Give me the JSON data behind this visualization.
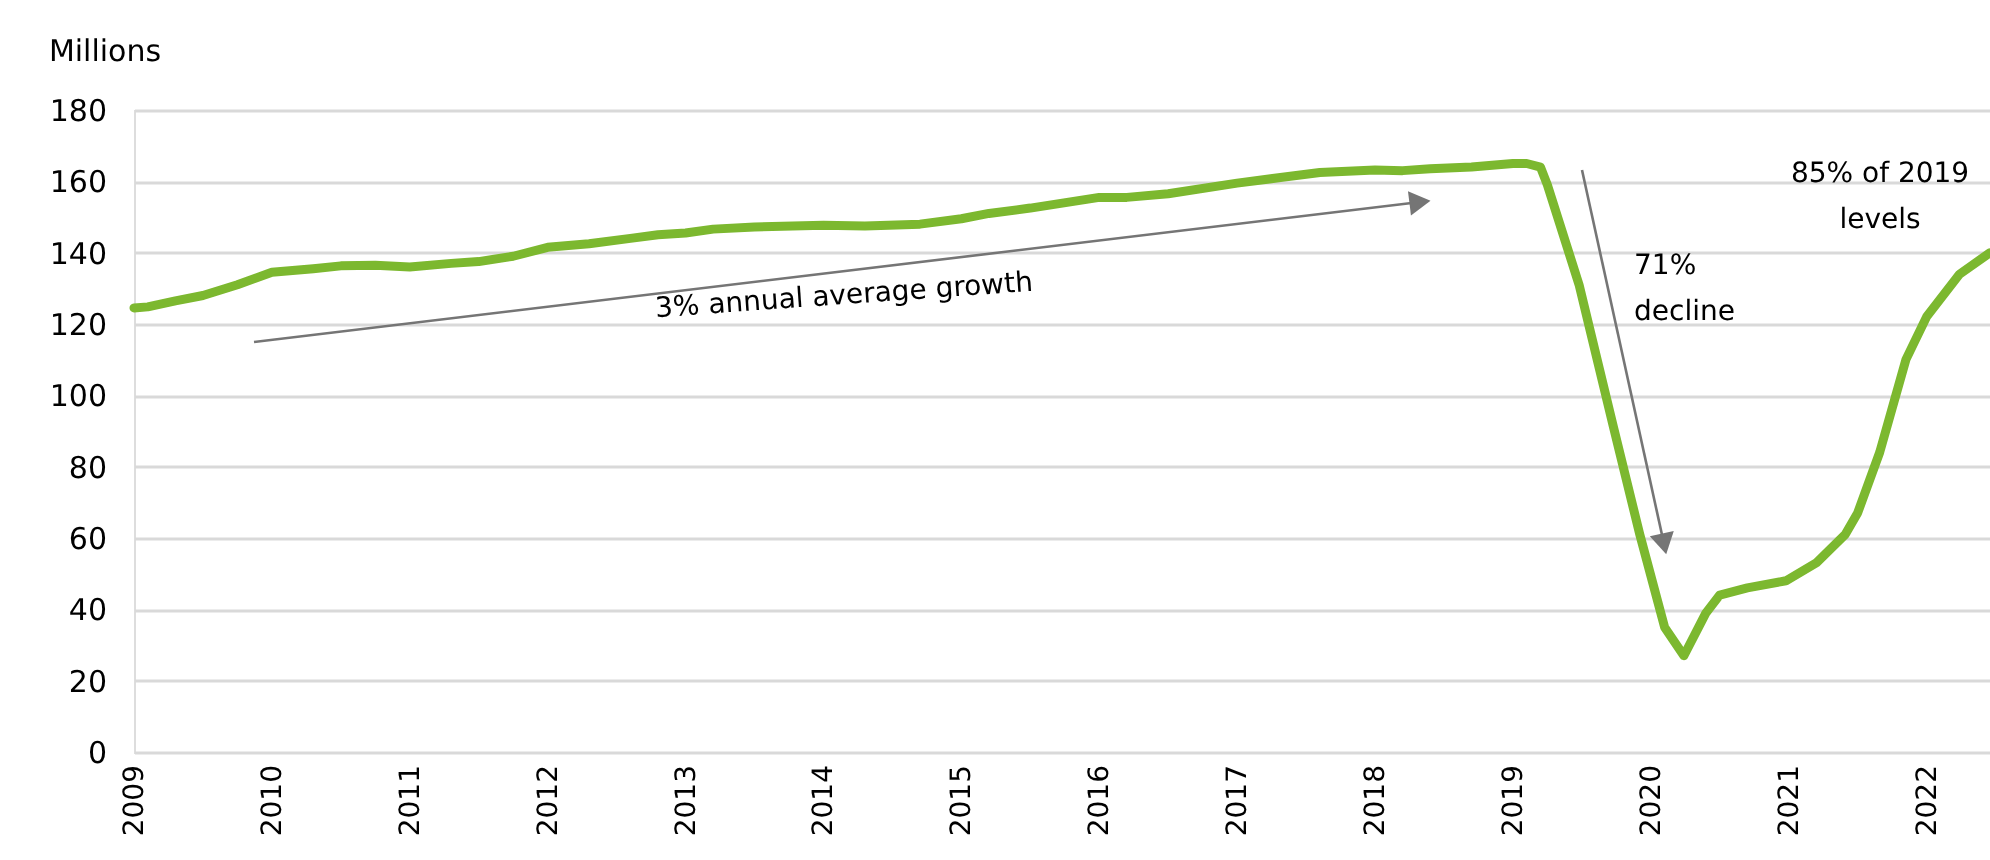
{
  "chart_data": {
    "type": "line",
    "ylabel": "Millions",
    "x": [
      2009.0,
      2009.1,
      2009.3,
      2009.5,
      2009.75,
      2010.0,
      2010.3,
      2010.5,
      2010.75,
      2011.0,
      2011.3,
      2011.5,
      2011.75,
      2012.0,
      2012.3,
      2012.6,
      2012.8,
      2013.0,
      2013.2,
      2013.5,
      2014.0,
      2014.3,
      2014.7,
      2015.0,
      2015.2,
      2015.5,
      2016.0,
      2016.2,
      2016.5,
      2017.0,
      2017.3,
      2017.6,
      2018.0,
      2018.2,
      2018.4,
      2018.7,
      2019.0,
      2019.1,
      2019.2,
      2019.25,
      2019.48,
      2019.73,
      2019.92,
      2020.1,
      2020.24,
      2020.4,
      2020.5,
      2020.7,
      2020.98,
      2021.2,
      2021.41,
      2021.5,
      2021.66,
      2021.85,
      2022.0,
      2022.24,
      2022.46
    ],
    "series": [
      {
        "color": "#7cb82f",
        "values": [
          124.5,
          124.8,
          126.5,
          128,
          131,
          134.5,
          135.5,
          136.3,
          136.5,
          136,
          137,
          137.5,
          139,
          141.5,
          142.5,
          144,
          145,
          145.5,
          146.6,
          147.2,
          147.7,
          147.5,
          148,
          149.5,
          151,
          152.5,
          155.5,
          155.5,
          156.5,
          159.5,
          161,
          162.5,
          163.2,
          163,
          163.5,
          164,
          165,
          165,
          164,
          159,
          131,
          91,
          61,
          35,
          27,
          39,
          44,
          46,
          48,
          53,
          61,
          67,
          84,
          110,
          122,
          134,
          140
        ]
      }
    ],
    "xlim": [
      2009,
      2022.46
    ],
    "xticks": [
      2009,
      2010,
      2011,
      2012,
      2013,
      2014,
      2015,
      2016,
      2017,
      2018,
      2019,
      2020,
      2021,
      2022
    ],
    "ylim": [
      0,
      180
    ],
    "yticks": [
      0,
      20,
      40,
      60,
      80,
      100,
      120,
      140,
      160,
      180
    ],
    "grid": "y",
    "line_style": "solid",
    "marker": "none",
    "annotations": [
      "3% annual average growth",
      "71%\ndecline",
      "85% of 2019\nlevels"
    ]
  }
}
